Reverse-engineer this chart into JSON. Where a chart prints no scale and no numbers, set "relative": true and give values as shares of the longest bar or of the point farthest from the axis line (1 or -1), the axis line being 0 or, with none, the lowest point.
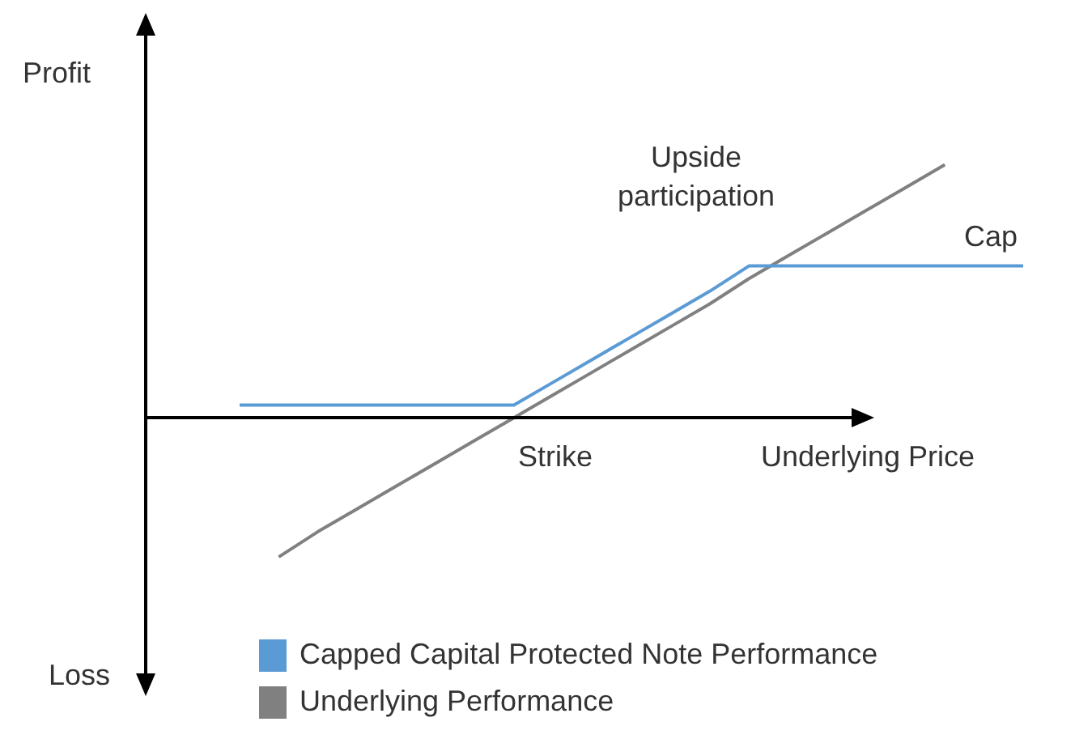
{
  "chart_data": {
    "type": "line",
    "relative": true,
    "xlabel": "Underlying Price",
    "legend": "bottom",
    "marker": "none",
    "line_style": "solid",
    "annotations": [
      "Profit",
      "Loss",
      "Upside\nparticipation",
      "Cap",
      "Strike"
    ],
    "categories": [
      null,
      null,
      null,
      null,
      null,
      null,
      null,
      null,
      null,
      null,
      null,
      null,
      null,
      null,
      null,
      null,
      null,
      null,
      null,
      null,
      null
    ],
    "series": [
      {
        "name": "Capped Capital Protected Note Performance",
        "color": "#5b9bd5",
        "values": [
          0.05,
          0.05,
          0.05,
          0.05,
          0.05,
          0.05,
          0.05,
          0.05,
          0.14,
          0.23,
          0.32,
          0.41,
          0.5,
          0.6,
          0.6,
          0.6,
          0.6,
          0.6,
          0.6,
          0.6,
          0.6
        ]
      },
      {
        "name": "Underlying Performance",
        "color": "#808080",
        "values": [
          null,
          -0.55,
          -0.45,
          -0.36,
          -0.27,
          -0.18,
          -0.09,
          0,
          0.09,
          0.18,
          0.27,
          0.36,
          0.45,
          0.55,
          0.64,
          0.73,
          0.82,
          0.91,
          1,
          null,
          null
        ]
      }
    ]
  }
}
